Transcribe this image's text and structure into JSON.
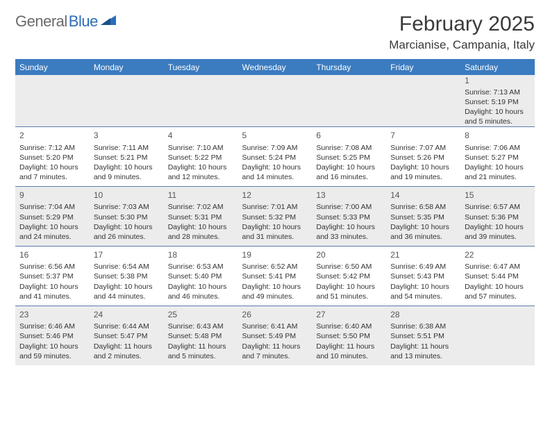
{
  "brand": {
    "gray": "General",
    "blue": "Blue"
  },
  "title": "February 2025",
  "location": "Marcianise, Campania, Italy",
  "colors": {
    "header_bg": "#3b7bbf",
    "header_text": "#ffffff",
    "shade_bg": "#ececec",
    "border": "#5a7fa8",
    "text": "#333333",
    "daynum": "#555555",
    "page_bg": "#ffffff",
    "logo_blue": "#2a6db8",
    "logo_gray": "#6a6a6a"
  },
  "layout": {
    "columns": 7,
    "rows": 5
  },
  "day_headers": [
    "Sunday",
    "Monday",
    "Tuesday",
    "Wednesday",
    "Thursday",
    "Friday",
    "Saturday"
  ],
  "weeks": [
    [
      {},
      {},
      {},
      {},
      {},
      {},
      {
        "n": "1",
        "sr": "7:13 AM",
        "ss": "5:19 PM",
        "dl": "10 hours and 5 minutes."
      }
    ],
    [
      {
        "n": "2",
        "sr": "7:12 AM",
        "ss": "5:20 PM",
        "dl": "10 hours and 7 minutes."
      },
      {
        "n": "3",
        "sr": "7:11 AM",
        "ss": "5:21 PM",
        "dl": "10 hours and 9 minutes."
      },
      {
        "n": "4",
        "sr": "7:10 AM",
        "ss": "5:22 PM",
        "dl": "10 hours and 12 minutes."
      },
      {
        "n": "5",
        "sr": "7:09 AM",
        "ss": "5:24 PM",
        "dl": "10 hours and 14 minutes."
      },
      {
        "n": "6",
        "sr": "7:08 AM",
        "ss": "5:25 PM",
        "dl": "10 hours and 16 minutes."
      },
      {
        "n": "7",
        "sr": "7:07 AM",
        "ss": "5:26 PM",
        "dl": "10 hours and 19 minutes."
      },
      {
        "n": "8",
        "sr": "7:06 AM",
        "ss": "5:27 PM",
        "dl": "10 hours and 21 minutes."
      }
    ],
    [
      {
        "n": "9",
        "sr": "7:04 AM",
        "ss": "5:29 PM",
        "dl": "10 hours and 24 minutes."
      },
      {
        "n": "10",
        "sr": "7:03 AM",
        "ss": "5:30 PM",
        "dl": "10 hours and 26 minutes."
      },
      {
        "n": "11",
        "sr": "7:02 AM",
        "ss": "5:31 PM",
        "dl": "10 hours and 28 minutes."
      },
      {
        "n": "12",
        "sr": "7:01 AM",
        "ss": "5:32 PM",
        "dl": "10 hours and 31 minutes."
      },
      {
        "n": "13",
        "sr": "7:00 AM",
        "ss": "5:33 PM",
        "dl": "10 hours and 33 minutes."
      },
      {
        "n": "14",
        "sr": "6:58 AM",
        "ss": "5:35 PM",
        "dl": "10 hours and 36 minutes."
      },
      {
        "n": "15",
        "sr": "6:57 AM",
        "ss": "5:36 PM",
        "dl": "10 hours and 39 minutes."
      }
    ],
    [
      {
        "n": "16",
        "sr": "6:56 AM",
        "ss": "5:37 PM",
        "dl": "10 hours and 41 minutes."
      },
      {
        "n": "17",
        "sr": "6:54 AM",
        "ss": "5:38 PM",
        "dl": "10 hours and 44 minutes."
      },
      {
        "n": "18",
        "sr": "6:53 AM",
        "ss": "5:40 PM",
        "dl": "10 hours and 46 minutes."
      },
      {
        "n": "19",
        "sr": "6:52 AM",
        "ss": "5:41 PM",
        "dl": "10 hours and 49 minutes."
      },
      {
        "n": "20",
        "sr": "6:50 AM",
        "ss": "5:42 PM",
        "dl": "10 hours and 51 minutes."
      },
      {
        "n": "21",
        "sr": "6:49 AM",
        "ss": "5:43 PM",
        "dl": "10 hours and 54 minutes."
      },
      {
        "n": "22",
        "sr": "6:47 AM",
        "ss": "5:44 PM",
        "dl": "10 hours and 57 minutes."
      }
    ],
    [
      {
        "n": "23",
        "sr": "6:46 AM",
        "ss": "5:46 PM",
        "dl": "10 hours and 59 minutes."
      },
      {
        "n": "24",
        "sr": "6:44 AM",
        "ss": "5:47 PM",
        "dl": "11 hours and 2 minutes."
      },
      {
        "n": "25",
        "sr": "6:43 AM",
        "ss": "5:48 PM",
        "dl": "11 hours and 5 minutes."
      },
      {
        "n": "26",
        "sr": "6:41 AM",
        "ss": "5:49 PM",
        "dl": "11 hours and 7 minutes."
      },
      {
        "n": "27",
        "sr": "6:40 AM",
        "ss": "5:50 PM",
        "dl": "11 hours and 10 minutes."
      },
      {
        "n": "28",
        "sr": "6:38 AM",
        "ss": "5:51 PM",
        "dl": "11 hours and 13 minutes."
      },
      {}
    ]
  ],
  "labels": {
    "sunrise": "Sunrise: ",
    "sunset": "Sunset: ",
    "daylight": "Daylight: "
  }
}
